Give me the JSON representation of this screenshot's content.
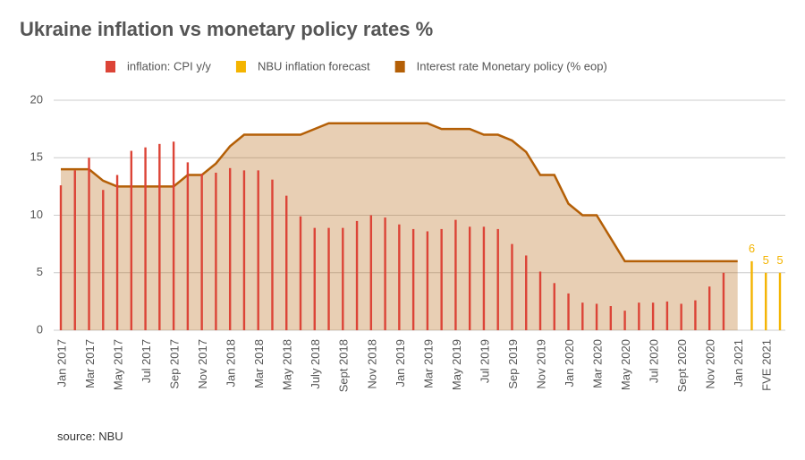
{
  "chart_data": {
    "type": "bar-line",
    "title": "Ukraine inflation vs monetary policy rates %",
    "source": "source: NBU",
    "categories": [
      "Jan 2017",
      null,
      "Mar 2017",
      null,
      "May 2017",
      null,
      "Jul 2017",
      null,
      "Sep 2017",
      null,
      "Nov 2017",
      null,
      "Jan 2018",
      null,
      "Mar 2018",
      null,
      "May 2018",
      null,
      "July 2018",
      null,
      "Sept 2018",
      null,
      "Nov 2018",
      null,
      "Jan 2019",
      null,
      "Mar 2019",
      null,
      "May 2019",
      null,
      "Jul 2019",
      null,
      "Sep 2019",
      null,
      "Nov 2019",
      null,
      "Jan 2020",
      null,
      "Mar 2020",
      null,
      "May 2020",
      null,
      "Jul 2020",
      null,
      "Sept 2020",
      null,
      "Nov 2020",
      null,
      "Jan 2021",
      null,
      "FVE 2021",
      null
    ],
    "series": [
      {
        "name": "inflation: CPI y/y",
        "kind": "bar",
        "color": "#dc4437",
        "values": [
          12.6,
          13.9,
          15.0,
          12.2,
          13.5,
          15.6,
          15.9,
          16.2,
          16.4,
          14.6,
          13.6,
          13.7,
          14.1,
          13.9,
          13.9,
          13.1,
          11.7,
          9.9,
          8.9,
          8.9,
          8.9,
          9.5,
          10.0,
          9.8,
          9.2,
          8.8,
          8.6,
          8.8,
          9.6,
          9.0,
          9.0,
          8.8,
          7.5,
          6.5,
          5.1,
          4.1,
          3.2,
          2.4,
          2.3,
          2.1,
          1.7,
          2.4,
          2.4,
          2.5,
          2.3,
          2.6,
          3.8,
          5.0,
          null,
          null,
          null,
          null
        ]
      },
      {
        "name": "NBU inflation forecast",
        "kind": "bar",
        "color": "#f4b400",
        "show_labels": true,
        "values": [
          null,
          null,
          null,
          null,
          null,
          null,
          null,
          null,
          null,
          null,
          null,
          null,
          null,
          null,
          null,
          null,
          null,
          null,
          null,
          null,
          null,
          null,
          null,
          null,
          null,
          null,
          null,
          null,
          null,
          null,
          null,
          null,
          null,
          null,
          null,
          null,
          null,
          null,
          null,
          null,
          null,
          null,
          null,
          null,
          null,
          null,
          null,
          null,
          null,
          6,
          5,
          5
        ]
      },
      {
        "name": "Interest rate Monetary policy (% eop)",
        "kind": "area",
        "color": "#b45f06",
        "values": [
          14,
          14,
          14,
          13,
          12.5,
          12.5,
          12.5,
          12.5,
          12.5,
          13.5,
          13.5,
          14.5,
          16,
          17,
          17,
          17,
          17,
          17,
          17.5,
          18,
          18,
          18,
          18,
          18,
          18,
          18,
          18,
          17.5,
          17.5,
          17.5,
          17,
          17,
          16.5,
          15.5,
          13.5,
          13.5,
          11,
          10,
          10,
          8,
          6,
          6,
          6,
          6,
          6,
          6,
          6,
          6,
          6,
          null,
          null,
          null
        ]
      }
    ],
    "ylim": [
      0,
      20
    ],
    "yticks": [
      0,
      5,
      10,
      15,
      20
    ],
    "grid": true,
    "legend": "top"
  }
}
